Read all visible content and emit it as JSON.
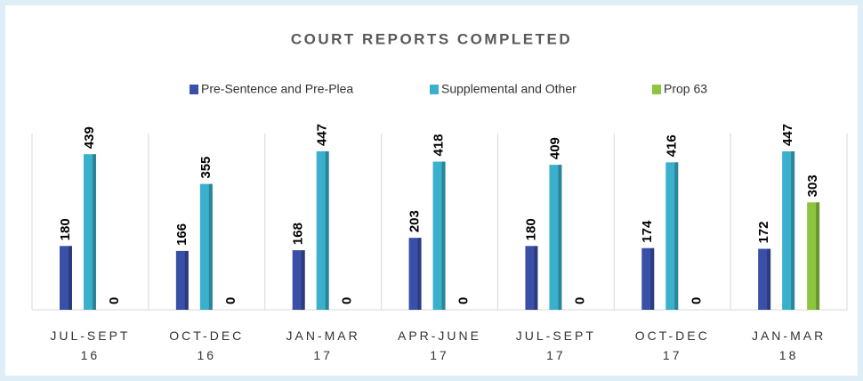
{
  "chart_data": {
    "type": "bar",
    "title": "COURT REPORTS COMPLETED",
    "categories": [
      "JUL-SEPT 16",
      "OCT-DEC 16",
      "JAN-MAR 17",
      "APR-JUNE 17",
      "JUL-SEPT 17",
      "OCT-DEC 17",
      "JAN-MAR 18"
    ],
    "series": [
      {
        "name": "Pre-Sentence and Pre-Plea",
        "color": "#3a4fa8",
        "values": [
          180,
          166,
          168,
          203,
          180,
          174,
          172
        ]
      },
      {
        "name": "Supplemental and Other",
        "color": "#3bb0cc",
        "values": [
          439,
          355,
          447,
          418,
          409,
          416,
          447
        ]
      },
      {
        "name": "Prop 63",
        "color": "#8cc63f",
        "values": [
          0,
          0,
          0,
          0,
          0,
          0,
          303
        ]
      }
    ],
    "legend": "top"
  }
}
